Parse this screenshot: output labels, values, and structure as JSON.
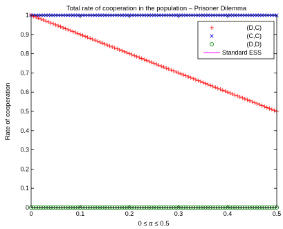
{
  "chart_data": {
    "type": "scatter",
    "title": "Total rate of cooperation in the population – Prisoner Dilemma",
    "xlabel": "0 ≤ α ≤ 0.5",
    "ylabel": "Rate of cooperation",
    "xlim": [
      0,
      0.5
    ],
    "ylim": [
      0,
      1
    ],
    "xticks": [
      "0",
      "0.1",
      "0.2",
      "0.3",
      "0.4",
      "0.5"
    ],
    "yticks": [
      "0",
      "0.1",
      "0.2",
      "0.3",
      "0.4",
      "0.5",
      "0.6",
      "0.7",
      "0.8",
      "0.9",
      "1"
    ],
    "grid": false,
    "legend_position": "top-right",
    "x_samples": {
      "start": 0,
      "stop": 0.5,
      "count": 101
    },
    "series": [
      {
        "name": "(D,C)",
        "marker": "plus",
        "color": "#ff0000",
        "y_start": 1.0,
        "y_end": 0.5,
        "relation": "y = 1 - x"
      },
      {
        "name": "(C,C)",
        "marker": "cross",
        "color": "#0000ff",
        "y_constant": 1.0
      },
      {
        "name": "(D,D)",
        "marker": "circle",
        "color": "#008000",
        "y_constant": 0.0
      },
      {
        "name": "Standard ESS",
        "marker": "line",
        "color": "#ff00ff",
        "y_constant": 0.0
      }
    ]
  }
}
